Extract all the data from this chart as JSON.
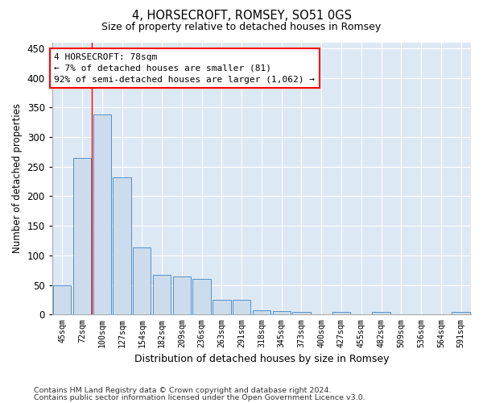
{
  "title1": "4, HORSECROFT, ROMSEY, SO51 0GS",
  "title2": "Size of property relative to detached houses in Romsey",
  "xlabel": "Distribution of detached houses by size in Romsey",
  "ylabel": "Number of detached properties",
  "categories": [
    "45sqm",
    "72sqm",
    "100sqm",
    "127sqm",
    "154sqm",
    "182sqm",
    "209sqm",
    "236sqm",
    "263sqm",
    "291sqm",
    "318sqm",
    "345sqm",
    "373sqm",
    "400sqm",
    "427sqm",
    "455sqm",
    "482sqm",
    "509sqm",
    "536sqm",
    "564sqm",
    "591sqm"
  ],
  "values": [
    50,
    265,
    338,
    232,
    113,
    67,
    65,
    60,
    25,
    25,
    7,
    6,
    4,
    0,
    4,
    0,
    4,
    0,
    0,
    0,
    5
  ],
  "bar_color": "#ccdcec",
  "bar_edge_color": "#5590c8",
  "bg_color": "#dde8f5",
  "annotation_line1": "4 HORSECROFT: 78sqm",
  "annotation_line2": "← 7% of detached houses are smaller (81)",
  "annotation_line3": "92% of semi-detached houses are larger (1,062) →",
  "vline_x_index": 1.5,
  "ylim": [
    0,
    460
  ],
  "yticks": [
    0,
    50,
    100,
    150,
    200,
    250,
    300,
    350,
    400,
    450
  ],
  "footer1": "Contains HM Land Registry data © Crown copyright and database right 2024.",
  "footer2": "Contains public sector information licensed under the Open Government Licence v3.0."
}
